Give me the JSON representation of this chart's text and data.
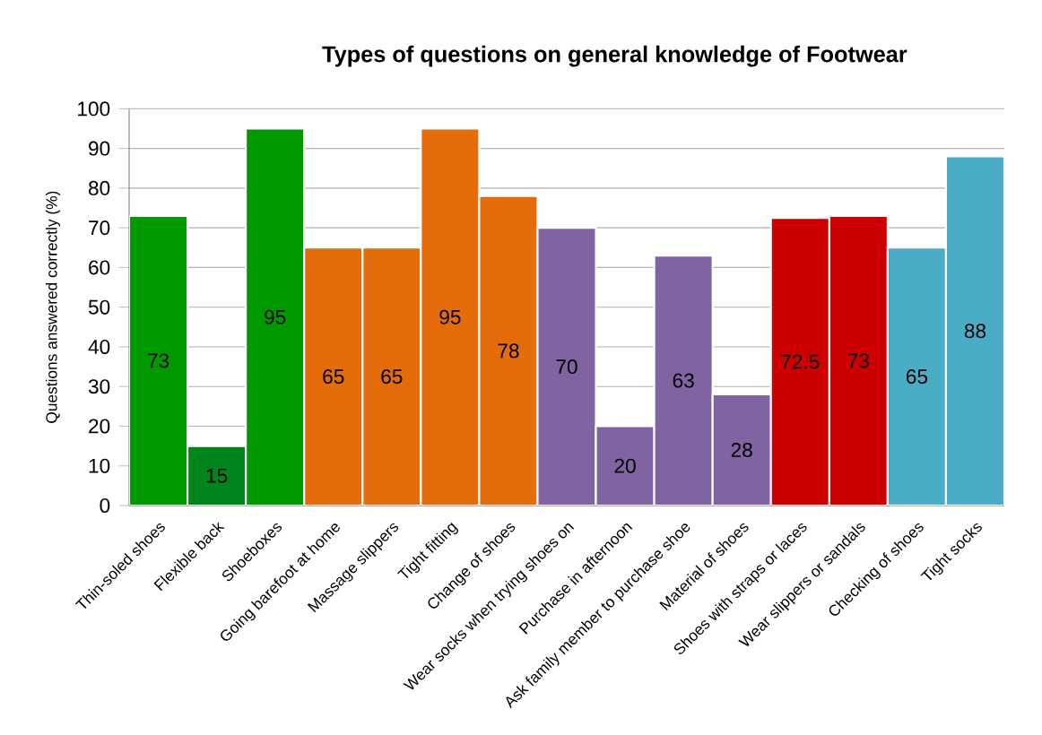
{
  "chart_data": {
    "type": "bar",
    "title": "Types of questions on general knowledge of Footwear",
    "ylabel": "Questions answered correctly (%)",
    "categories": [
      "Thin-soled shoes",
      "Flexible back",
      "Shoeboxes",
      "Going barefoot at home",
      "Massage slippers",
      "Tight fitting",
      "Change of shoes",
      "Wear socks when trying shoes on",
      "Purchase in afternoon",
      "Ask family member to purchase shoe",
      "Material of shoes",
      "Shoes with straps or laces",
      "Wear slippers or sandals",
      "Checking of shoes",
      "Tight socks"
    ],
    "values": [
      73,
      15,
      95,
      65,
      65,
      95,
      78,
      70,
      20,
      63,
      28,
      72.5,
      73,
      65,
      88
    ],
    "colors": [
      "#009a00",
      "#00841c",
      "#009a00",
      "#e46c0a",
      "#e46c0a",
      "#e46c0a",
      "#e46c0a",
      "#8064a2",
      "#8064a2",
      "#8064a2",
      "#8064a2",
      "#cc0000",
      "#cc0000",
      "#4bacc6",
      "#4bacc6"
    ],
    "ylim": [
      0,
      100
    ],
    "yticks": [
      0,
      10,
      20,
      30,
      40,
      50,
      60,
      70,
      80,
      90,
      100
    ],
    "grid": "y",
    "data_labels": true
  }
}
